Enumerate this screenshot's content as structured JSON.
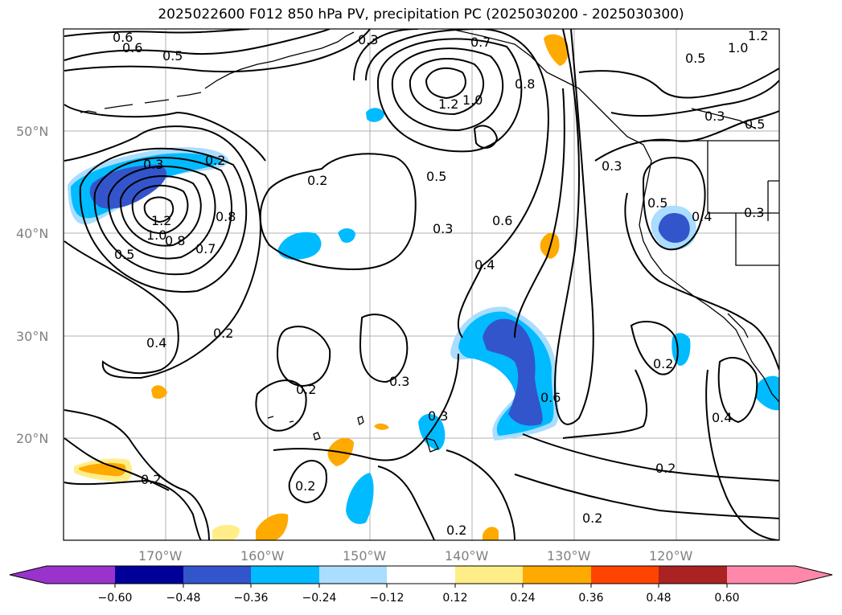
{
  "title": "2025022600 F012 850 hPa PV, precipitation PC (2025030200 - 2025030300)",
  "lat_labels": [
    "50°N",
    "40°N",
    "30°N",
    "20°N"
  ],
  "lon_labels": [
    "170°W",
    "160°W",
    "150°W",
    "140°W",
    "130°W",
    "120°W"
  ],
  "contour_labels": [
    "0.6",
    "0.5",
    "0.3",
    "0.7",
    "1.2",
    "1.0",
    "0.8",
    "0.5",
    "0.3",
    "0.2",
    "0.3",
    "1.2",
    "1.0",
    "0.8",
    "0.7",
    "0.5",
    "0.4",
    "0.2",
    "0.5",
    "0.3",
    "0.4",
    "0.6",
    "0.6",
    "0.2",
    "0.3",
    "0.2",
    "0.3",
    "0.2",
    "0.2",
    "0.2",
    "0.4",
    "0.2",
    "0.5",
    "0.4",
    "0.3",
    "1.2",
    "1.0",
    "0.5",
    "0.3",
    "0.5",
    "0.2"
  ],
  "colorbar": {
    "ticks": [
      "−0.60",
      "−0.48",
      "−0.36",
      "−0.24",
      "−0.12",
      "0.12",
      "0.24",
      "0.36",
      "0.48",
      "0.60"
    ],
    "colors": [
      "#9933cc",
      "#000099",
      "#3355cc",
      "#00bbff",
      "#aaddff",
      "#ffffff",
      "#ffee88",
      "#ffaa00",
      "#ff4400",
      "#aa2222",
      "#ff88aa"
    ]
  },
  "shading_colors": {
    "neg_light": "#aaddff",
    "neg_mid": "#00bbff",
    "neg_strong": "#3355cc",
    "pos_light": "#ffee88",
    "pos_mid": "#ffaa00"
  }
}
